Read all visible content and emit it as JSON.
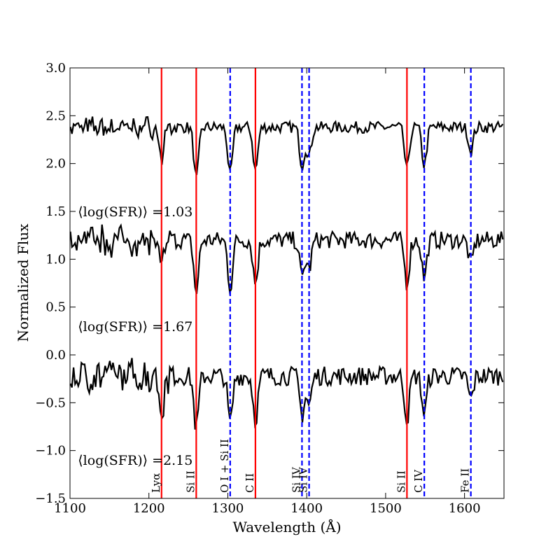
{
  "chart_data": {
    "type": "line",
    "title": "",
    "xlabel": "Wavelength (Å)",
    "ylabel": "Normalized Flux",
    "xlim": [
      1100,
      1650
    ],
    "ylim": [
      -1.5,
      3.0
    ],
    "xticks": [
      1100,
      1200,
      1300,
      1400,
      1500,
      1600
    ],
    "yticks": [
      -1.5,
      -1.0,
      -0.5,
      0.0,
      0.5,
      1.0,
      1.5,
      2.0,
      2.5,
      3.0
    ],
    "series": [
      {
        "name": "⟨log(SFR)⟩ =1.03",
        "label_at": {
          "x": 1110,
          "y": 1.45
        },
        "baseline": 2.38,
        "noise": 0.06,
        "color": "#000000"
      },
      {
        "name": "⟨log(SFR)⟩ =1.67",
        "label_at": {
          "x": 1110,
          "y": 0.25
        },
        "baseline": 1.2,
        "noise": 0.09,
        "color": "#000000"
      },
      {
        "name": "⟨log(SFR)⟩ =2.15",
        "label_at": {
          "x": 1110,
          "y": -1.15
        },
        "baseline": -0.22,
        "noise": 0.1,
        "color": "#000000"
      }
    ],
    "lines": [
      {
        "label": "Lyα",
        "x": 1216,
        "style": "solid",
        "color": "#ff0000",
        "depth": 0.35
      },
      {
        "label": "Si II",
        "x": 1260,
        "style": "solid",
        "color": "#ff0000",
        "depth": 0.55
      },
      {
        "label": "O I + Si II",
        "x": 1303,
        "style": "dashed",
        "color": "#0000ff",
        "depth": 0.5
      },
      {
        "label": "C II",
        "x": 1335,
        "style": "solid",
        "color": "#ff0000",
        "depth": 0.45
      },
      {
        "label": "Si IV",
        "x": 1394,
        "style": "dashed",
        "color": "#0000ff",
        "depth": 0.4
      },
      {
        "label": "Si IV",
        "x": 1403,
        "style": "dashed",
        "color": "#0000ff",
        "depth": 0.3
      },
      {
        "label": "Si II",
        "x": 1527,
        "style": "solid",
        "color": "#ff0000",
        "depth": 0.45
      },
      {
        "label": "C IV",
        "x": 1549,
        "style": "dashed",
        "color": "#0000ff",
        "depth": 0.4
      },
      {
        "label": "Fe II",
        "x": 1608,
        "style": "dashed",
        "color": "#0000ff",
        "depth": 0.25
      }
    ]
  }
}
